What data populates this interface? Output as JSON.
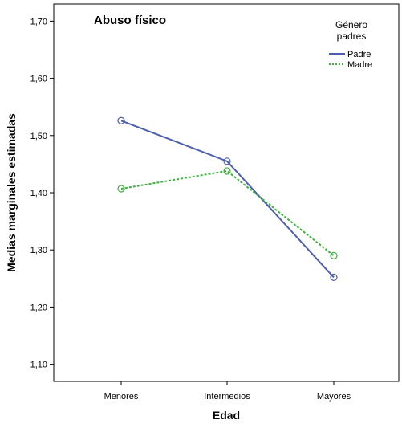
{
  "chart_data": {
    "type": "line",
    "title": "Abuso físico",
    "xlabel": "Edad",
    "ylabel": "Medias marginales estimadas",
    "categories": [
      "Menores",
      "Intermedios",
      "Mayores"
    ],
    "ylim": [
      1.07,
      1.73
    ],
    "yticks": [
      "1,10",
      "1,20",
      "1,30",
      "1,40",
      "1,50",
      "1,60",
      "1,70"
    ],
    "ytick_values": [
      1.1,
      1.2,
      1.3,
      1.4,
      1.5,
      1.6,
      1.7
    ],
    "grid": false,
    "legend": {
      "title_line1": "Género",
      "title_line2": "padres",
      "placement": "top-right"
    },
    "series": [
      {
        "name": "Padre",
        "values": [
          1.526,
          1.455,
          1.252
        ],
        "color": "#4C5FAF",
        "style": "solid"
      },
      {
        "name": "Madre",
        "values": [
          1.407,
          1.438,
          1.29
        ],
        "color": "#3DB33D",
        "style": "dotted"
      }
    ]
  }
}
